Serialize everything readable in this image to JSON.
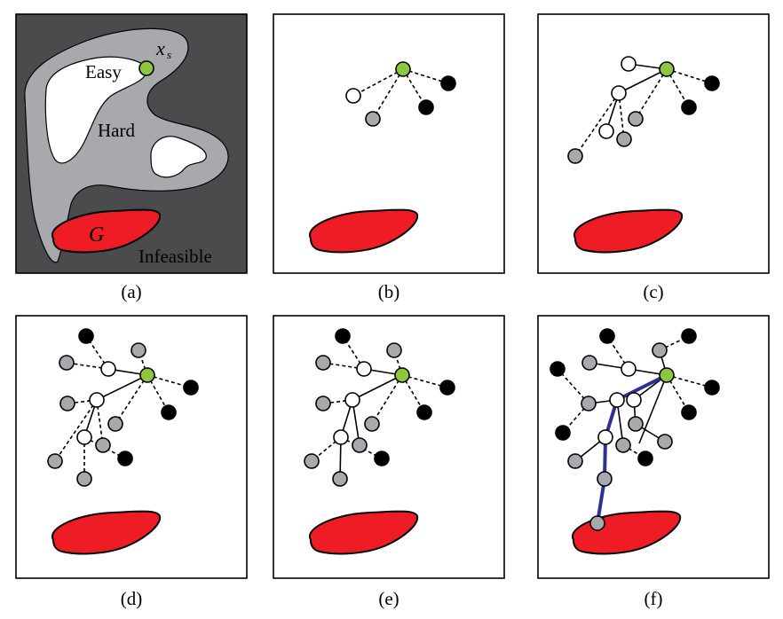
{
  "colors": {
    "infeasible": "#4a4b4d",
    "hard": "#a8a9ad",
    "easy": "#ffffff",
    "goal": "#ee1c25",
    "start": "#8dc63f",
    "white_node": "#ffffff",
    "gray_node": "#a7a9ac",
    "black_node": "#000000",
    "path": "#2e3192"
  },
  "panel_a": {
    "easy_label": "Easy",
    "hard_label": "Hard",
    "infeasible_label": "Infeasible",
    "goal_label": "G",
    "start_label": "x",
    "start_subscript": "s"
  },
  "captions": [
    "(a)",
    "(b)",
    "(c)",
    "(d)",
    "(e)",
    "(f)"
  ]
}
